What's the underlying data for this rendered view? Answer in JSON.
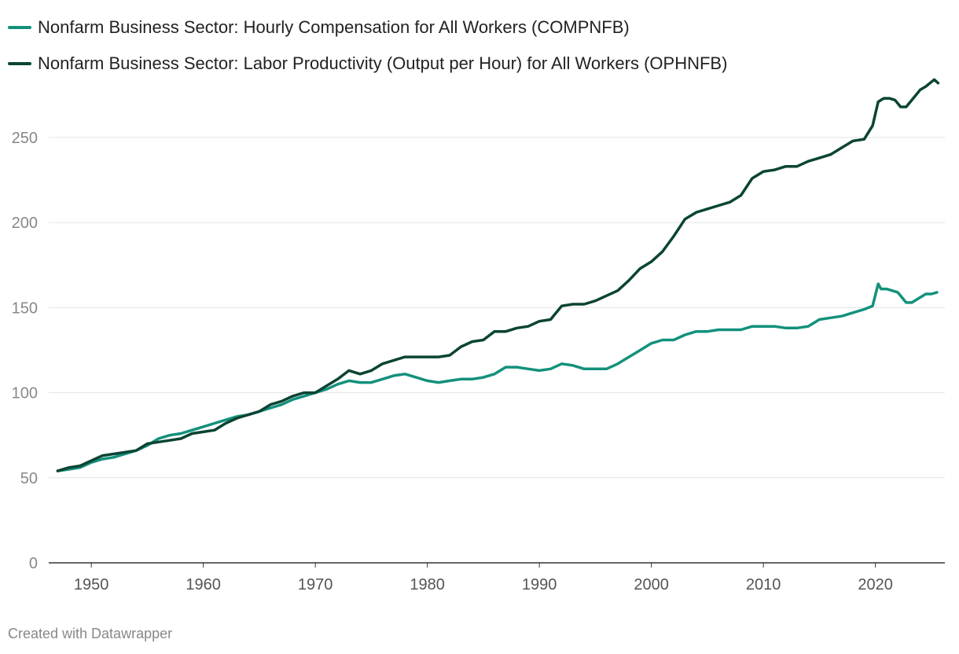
{
  "chart_data": {
    "type": "line",
    "title": "",
    "xlabel": "",
    "ylabel": "",
    "xlim": [
      1946.2,
      2026.2
    ],
    "ylim": [
      0,
      280
    ],
    "x_ticks": [
      1950,
      1960,
      1970,
      1980,
      1990,
      2000,
      2010,
      2020
    ],
    "y_ticks": [
      0,
      50,
      100,
      150,
      200,
      250
    ],
    "grid": true,
    "legend_position": "top-left",
    "series": [
      {
        "name": "Nonfarm Business Sector: Hourly Compensation for All Workers (COMPNFB)",
        "color": "#13917b",
        "x": [
          1947,
          1948,
          1949,
          1950,
          1951,
          1952,
          1953,
          1954,
          1955,
          1956,
          1957,
          1958,
          1959,
          1960,
          1961,
          1962,
          1963,
          1964,
          1965,
          1966,
          1967,
          1968,
          1969,
          1970,
          1971,
          1972,
          1973,
          1974,
          1975,
          1976,
          1977,
          1978,
          1979,
          1980,
          1981,
          1982,
          1983,
          1984,
          1985,
          1986,
          1987,
          1988,
          1989,
          1990,
          1991,
          1992,
          1993,
          1994,
          1995,
          1996,
          1997,
          1998,
          1999,
          2000,
          2001,
          2002,
          2003,
          2004,
          2005,
          2006,
          2007,
          2008,
          2009,
          2010,
          2011,
          2012,
          2013,
          2014,
          2015,
          2016,
          2017,
          2018,
          2019,
          2019.75,
          2020.25,
          2020.5,
          2021,
          2022,
          2022.75,
          2023.25,
          2024,
          2024.5,
          2025,
          2025.5
        ],
        "values": [
          54,
          55,
          56,
          59,
          61,
          62,
          64,
          66,
          69,
          73,
          75,
          76,
          78,
          80,
          82,
          84,
          86,
          87,
          89,
          91,
          93,
          96,
          98,
          100,
          102,
          105,
          107,
          106,
          106,
          108,
          110,
          111,
          109,
          107,
          106,
          107,
          108,
          108,
          109,
          111,
          115,
          115,
          114,
          113,
          114,
          117,
          116,
          114,
          114,
          114,
          117,
          121,
          125,
          129,
          131,
          131,
          134,
          136,
          136,
          137,
          137,
          137,
          139,
          139,
          139,
          138,
          138,
          139,
          143,
          144,
          145,
          147,
          149,
          151,
          164,
          161,
          161,
          159,
          153,
          153,
          156,
          158,
          158,
          159
        ]
      },
      {
        "name": "Nonfarm Business Sector: Labor Productivity (Output per Hour) for All Workers (OPHNFB)",
        "color": "#0b4434",
        "x": [
          1947,
          1948,
          1949,
          1950,
          1951,
          1952,
          1953,
          1954,
          1955,
          1956,
          1957,
          1958,
          1959,
          1960,
          1961,
          1962,
          1963,
          1964,
          1965,
          1966,
          1967,
          1968,
          1969,
          1970,
          1971,
          1972,
          1973,
          1974,
          1975,
          1976,
          1977,
          1978,
          1979,
          1980,
          1981,
          1982,
          1983,
          1984,
          1985,
          1986,
          1987,
          1988,
          1989,
          1990,
          1991,
          1992,
          1993,
          1994,
          1995,
          1996,
          1997,
          1998,
          1999,
          2000,
          2001,
          2002,
          2003,
          2004,
          2005,
          2006,
          2007,
          2008,
          2009,
          2010,
          2011,
          2012,
          2013,
          2014,
          2015,
          2016,
          2017,
          2018,
          2019,
          2019.75,
          2020.25,
          2020.75,
          2021.25,
          2021.75,
          2022.25,
          2022.75,
          2023.5,
          2024,
          2024.5,
          2025.25,
          2025.6
        ],
        "values": [
          54,
          56,
          57,
          60,
          63,
          64,
          65,
          66,
          70,
          71,
          72,
          73,
          76,
          77,
          78,
          82,
          85,
          87,
          89,
          93,
          95,
          98,
          100,
          100,
          104,
          108,
          113,
          111,
          113,
          117,
          119,
          121,
          121,
          121,
          121,
          122,
          127,
          130,
          131,
          136,
          136,
          138,
          139,
          142,
          143,
          151,
          152,
          152,
          154,
          157,
          160,
          166,
          173,
          177,
          183,
          192,
          202,
          206,
          208,
          210,
          212,
          216,
          226,
          230,
          231,
          233,
          233,
          236,
          238,
          240,
          244,
          248,
          249,
          257,
          271,
          273,
          273,
          272,
          268,
          268,
          274,
          278,
          280,
          284,
          282
        ]
      }
    ],
    "credit": "Created with Datawrapper"
  }
}
